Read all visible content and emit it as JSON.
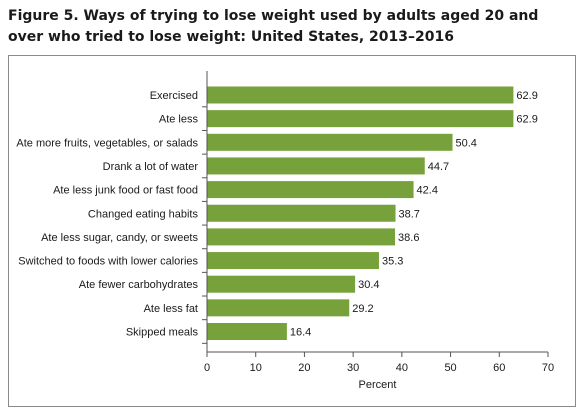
{
  "title": "Figure 5. Ways of trying to lose weight used by adults aged 20 and over who tried to lose weight: United States, 2013–2016",
  "colors": {
    "bar": "#77a13b",
    "axis": "#555555",
    "frame": "#8a8a8a"
  },
  "chart_data": {
    "type": "bar",
    "orientation": "horizontal",
    "categories": [
      "Exercised",
      "Ate less",
      "Ate more fruits, vegetables, or salads",
      "Drank a lot of water",
      "Ate less junk food or fast food",
      "Changed eating habits",
      "Ate less sugar, candy, or sweets",
      "Switched to foods with lower calories",
      "Ate fewer carbohydrates",
      "Ate less fat",
      "Skipped meals"
    ],
    "values": [
      62.9,
      62.9,
      50.4,
      44.7,
      42.4,
      38.7,
      38.6,
      35.3,
      30.4,
      29.2,
      16.4
    ],
    "value_labels": [
      "62.9",
      "62.9",
      "50.4",
      "44.7",
      "42.4",
      "38.7",
      "38.6",
      "35.3",
      "30.4",
      "29.2",
      "16.4"
    ],
    "xlabel": "Percent",
    "xlim": [
      0,
      70
    ],
    "xticks": [
      "0",
      "10",
      "20",
      "30",
      "40",
      "50",
      "60",
      "70"
    ],
    "grid": false,
    "legend": "none"
  }
}
